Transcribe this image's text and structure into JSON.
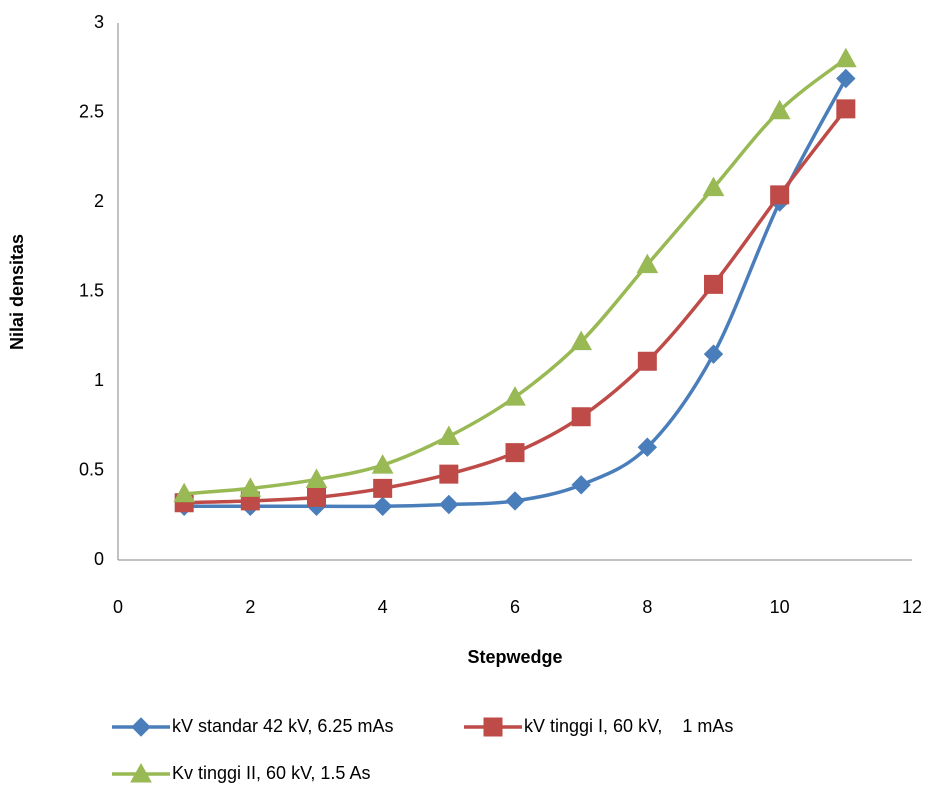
{
  "chart_data": {
    "type": "line",
    "x_label": "Stepwedge",
    "y_label": "Nilai densitas",
    "x": [
      1,
      2,
      3,
      4,
      5,
      6,
      7,
      8,
      9,
      10,
      11
    ],
    "series": [
      {
        "name": "kV standar 42 kV, 6.25 mAs",
        "color": "#4a7ebb",
        "marker": "diamond",
        "values": [
          0.3,
          0.3,
          0.3,
          0.3,
          0.31,
          0.33,
          0.42,
          0.63,
          1.15,
          2.0,
          2.69
        ]
      },
      {
        "name": "kV tinggi I, 60 kV,    1 mAs",
        "color": "#be4b48",
        "marker": "square",
        "values": [
          0.32,
          0.33,
          0.35,
          0.4,
          0.48,
          0.6,
          0.8,
          1.11,
          1.54,
          2.04,
          2.52
        ]
      },
      {
        "name": "Kv tinggi II, 60 kV, 1.5 As",
        "color": "#98b954",
        "marker": "triangle",
        "values": [
          0.37,
          0.4,
          0.45,
          0.53,
          0.69,
          0.91,
          1.22,
          1.65,
          2.08,
          2.51,
          2.8
        ]
      }
    ],
    "xlim": [
      0,
      12
    ],
    "xticks": [
      0,
      2,
      4,
      6,
      8,
      10,
      12
    ],
    "ylim": [
      0,
      3
    ],
    "yticks": [
      0,
      0.5,
      1,
      1.5,
      2,
      2.5,
      3
    ],
    "grid": false,
    "smooth": true,
    "legend": "bottom"
  }
}
